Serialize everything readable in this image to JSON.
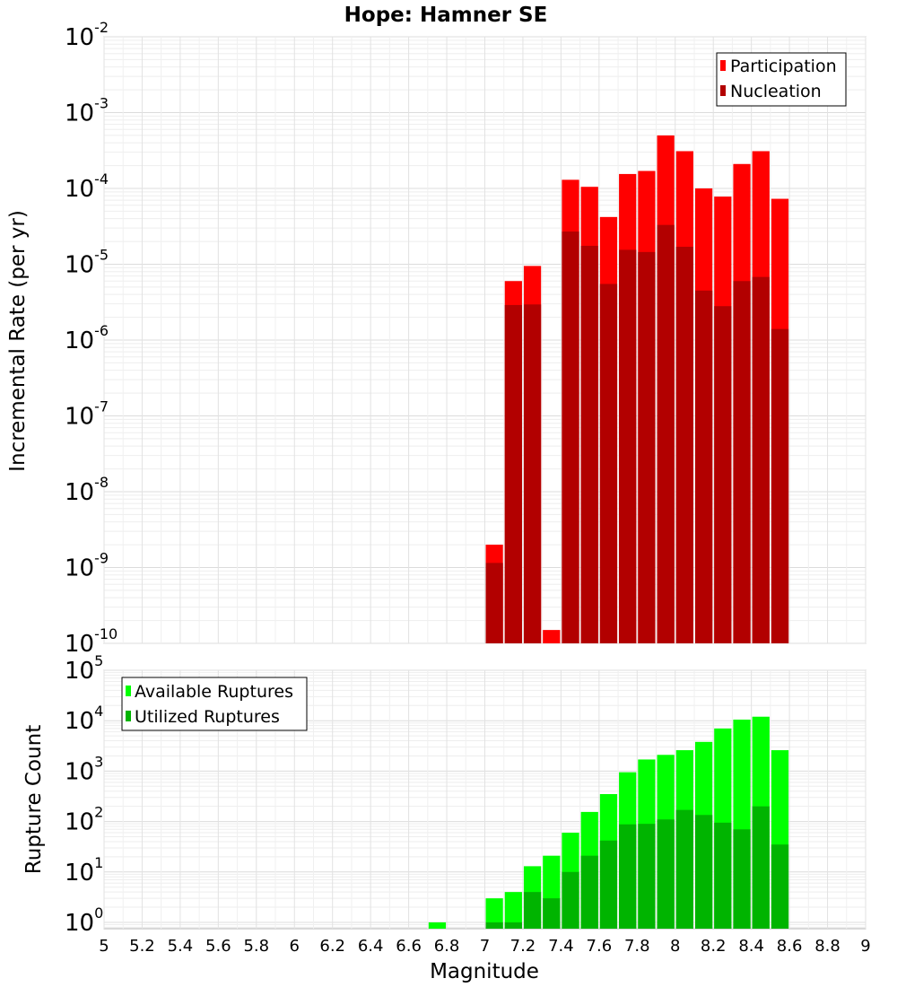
{
  "chart_data": [
    {
      "type": "bar",
      "title": "Hope: Hamner SE",
      "ylabel": "Incremental Rate (per yr)",
      "xlabel": "",
      "yscale": "log",
      "ylim": [
        1e-10,
        0.01
      ],
      "xlim": [
        5,
        9
      ],
      "bar_width": 0.1,
      "grid": true,
      "legend_placement": "top-right",
      "x": [
        7.05,
        7.15,
        7.25,
        7.35,
        7.45,
        7.55,
        7.65,
        7.75,
        7.85,
        7.95,
        8.05,
        8.15,
        8.25,
        8.35,
        8.45,
        8.55
      ],
      "series": [
        {
          "name": "Participation",
          "color": "#ff0000",
          "values": [
            2e-09,
            6e-06,
            9.5e-06,
            1.5e-10,
            0.00013,
            0.000105,
            4.2e-05,
            0.000155,
            0.00017,
            0.0005,
            0.00031,
            0.0001,
            7.8e-05,
            0.00021,
            0.00031,
            7.3e-05
          ]
        },
        {
          "name": "Nucleation",
          "color": "#b20000",
          "values": [
            1.15e-09,
            2.9e-06,
            2.95e-06,
            null,
            2.7e-05,
            1.75e-05,
            5.5e-06,
            1.55e-05,
            1.45e-05,
            3.3e-05,
            1.7e-05,
            4.5e-06,
            2.8e-06,
            6e-06,
            6.8e-06,
            1.4e-06
          ]
        }
      ],
      "yticks": [
        {
          "base": "10",
          "exp": "-10"
        },
        {
          "base": "10",
          "exp": "-9"
        },
        {
          "base": "10",
          "exp": "-8"
        },
        {
          "base": "10",
          "exp": "-7"
        },
        {
          "base": "10",
          "exp": "-6"
        },
        {
          "base": "10",
          "exp": "-5"
        },
        {
          "base": "10",
          "exp": "-4"
        },
        {
          "base": "10",
          "exp": "-3"
        },
        {
          "base": "10",
          "exp": "-2"
        }
      ]
    },
    {
      "type": "bar",
      "ylabel": "Rupture Count",
      "xlabel": "Magnitude",
      "yscale": "log",
      "ylim": [
        0.75,
        100000
      ],
      "xlim": [
        5,
        9
      ],
      "bar_width": 0.1,
      "grid": true,
      "legend_placement": "top-left",
      "x": [
        6.75,
        7.05,
        7.15,
        7.25,
        7.35,
        7.45,
        7.55,
        7.65,
        7.75,
        7.85,
        7.95,
        8.05,
        8.15,
        8.25,
        8.35,
        8.45,
        8.55
      ],
      "series": [
        {
          "name": "Available Ruptures",
          "color": "#00ff00",
          "values": [
            1,
            3,
            4,
            13,
            21,
            60,
            155,
            350,
            950,
            1700,
            2100,
            2600,
            3800,
            7000,
            10500,
            12000,
            2600
          ]
        },
        {
          "name": "Utilized Ruptures",
          "color": "#00b400",
          "values": [
            null,
            1,
            1,
            4,
            3,
            10,
            21,
            42,
            88,
            90,
            110,
            170,
            135,
            95,
            70,
            200,
            35
          ]
        }
      ],
      "yticks": [
        {
          "base": "10",
          "exp": "0"
        },
        {
          "base": "10",
          "exp": "1"
        },
        {
          "base": "10",
          "exp": "2"
        },
        {
          "base": "10",
          "exp": "3"
        },
        {
          "base": "10",
          "exp": "4"
        },
        {
          "base": "10",
          "exp": "5"
        }
      ],
      "xticks": [
        "5",
        "5.2",
        "5.4",
        "5.6",
        "5.8",
        "6",
        "6.2",
        "6.4",
        "6.6",
        "6.8",
        "7",
        "7.2",
        "7.4",
        "7.6",
        "7.8",
        "8",
        "8.2",
        "8.4",
        "8.6",
        "8.8",
        "9"
      ]
    }
  ]
}
